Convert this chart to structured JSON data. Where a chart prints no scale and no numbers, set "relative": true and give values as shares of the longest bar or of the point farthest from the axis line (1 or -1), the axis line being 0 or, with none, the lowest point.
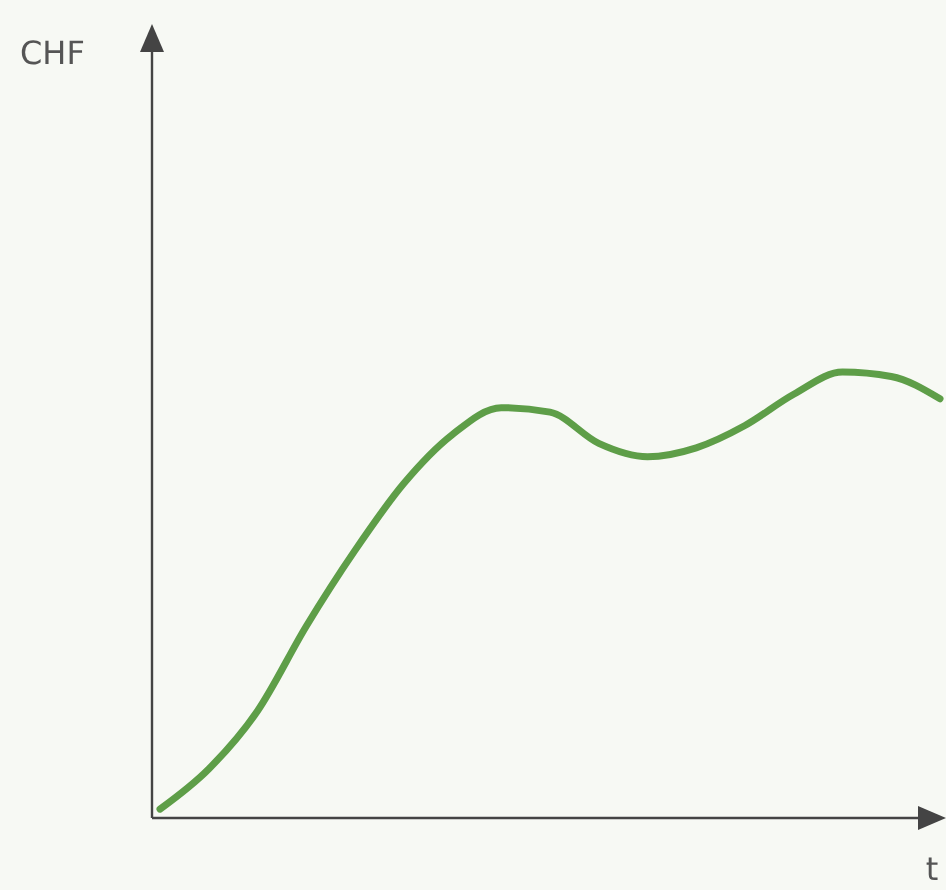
{
  "chart_data": {
    "type": "line",
    "xlabel": "t",
    "annotations": [
      "CHF"
    ],
    "relative": true,
    "categories": [
      null,
      null,
      null,
      null,
      null,
      null,
      null,
      null,
      null,
      null,
      null,
      null,
      null,
      null,
      null,
      null,
      null
    ],
    "series": [
      {
        "color": "#5e9e48",
        "values": [
          0.02,
          0.11,
          0.24,
          0.43,
          0.6,
          0.75,
          0.86,
          0.92,
          0.91,
          0.84,
          0.81,
          0.83,
          0.88,
          0.95,
          1.0,
          0.99,
          0.94
        ]
      }
    ]
  }
}
